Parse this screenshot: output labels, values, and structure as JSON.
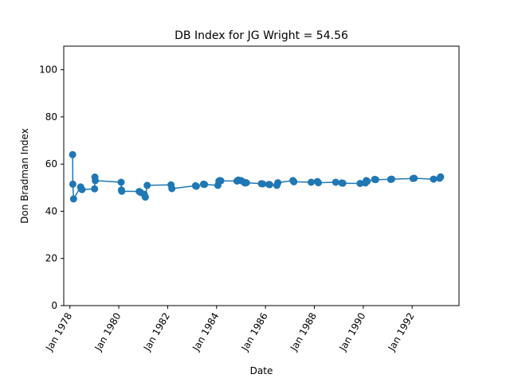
{
  "chart_data": {
    "type": "line",
    "title": "DB Index for JG Wright = 54.56",
    "xlabel": "Date",
    "ylabel": "Don Bradman Index",
    "ylim": [
      0,
      110
    ],
    "xlim": [
      "1977-10-01",
      "1993-12-01"
    ],
    "y_ticks": [
      0,
      20,
      40,
      60,
      80,
      100
    ],
    "x_ticks": [
      {
        "date": "1978-01-01",
        "label": "Jan 1978"
      },
      {
        "date": "1980-01-01",
        "label": "Jan 1980"
      },
      {
        "date": "1982-01-01",
        "label": "Jan 1982"
      },
      {
        "date": "1984-01-01",
        "label": "Jan 1984"
      },
      {
        "date": "1986-01-01",
        "label": "Jan 1986"
      },
      {
        "date": "1988-01-01",
        "label": "Jan 1988"
      },
      {
        "date": "1990-01-01",
        "label": "Jan 1990"
      },
      {
        "date": "1992-01-01",
        "label": "Jan 1992"
      }
    ],
    "grid": false,
    "color": "#1f77b4",
    "series": [
      {
        "x": [
          "1978-02-10",
          "1978-02-14",
          "1978-02-24",
          "1978-06-10",
          "1978-06-15",
          "1978-07-01",
          "1979-01-05",
          "1979-01-10",
          "1979-01-15",
          "1980-02-05",
          "1980-02-10",
          "1980-02-15",
          "1980-11-01",
          "1980-11-20",
          "1981-01-15",
          "1981-02-01",
          "1981-03-01",
          "1982-02-20",
          "1982-03-05",
          "1983-02-20",
          "1983-03-05",
          "1983-06-20",
          "1983-07-05",
          "1984-01-20",
          "1984-02-05",
          "1984-02-20",
          "1984-03-05",
          "1984-11-01",
          "1984-11-20",
          "1985-01-01",
          "1985-02-15",
          "1985-03-01",
          "1985-03-20",
          "1985-11-01",
          "1985-11-20",
          "1986-02-20",
          "1986-03-05",
          "1986-06-20",
          "1986-07-05",
          "1987-02-15",
          "1987-03-01",
          "1987-11-15",
          "1988-02-15",
          "1988-03-01",
          "1988-11-15",
          "1989-02-15",
          "1989-03-01",
          "1989-11-15",
          "1990-02-01",
          "1990-02-15",
          "1990-03-01",
          "1990-06-20",
          "1990-07-05",
          "1991-02-15",
          "1991-03-01",
          "1992-01-15",
          "1992-02-01",
          "1992-11-15",
          "1993-02-15",
          "1993-03-01"
        ],
        "y": [
          64.0,
          51.5,
          45.2,
          50.3,
          49.8,
          49.2,
          49.5,
          54.5,
          53.0,
          52.3,
          49.0,
          48.5,
          48.4,
          48.0,
          47.2,
          46.0,
          51.0,
          51.2,
          49.6,
          50.8,
          50.6,
          51.5,
          51.4,
          51.0,
          52.8,
          53.0,
          52.9,
          52.8,
          53.2,
          53.0,
          52.3,
          52.0,
          52.1,
          51.7,
          51.6,
          51.4,
          51.3,
          51.0,
          52.1,
          53.0,
          52.5,
          52.3,
          52.6,
          52.1,
          52.3,
          52.0,
          51.9,
          51.8,
          52.0,
          53.0,
          52.7,
          53.5,
          53.4,
          53.5,
          53.6,
          53.9,
          54.0,
          53.6,
          54.0,
          54.56
        ]
      }
    ]
  }
}
